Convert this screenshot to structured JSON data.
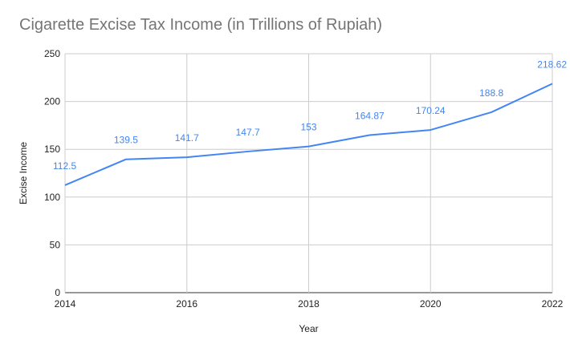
{
  "chart_data": {
    "type": "line",
    "title": "Cigarette Excise Tax Income (in Trillions of Rupiah)",
    "xlabel": "Year",
    "ylabel": "Excise Income",
    "x": [
      2014,
      2015,
      2016,
      2017,
      2018,
      2019,
      2020,
      2021,
      2022
    ],
    "series": [
      {
        "values": [
          112.5,
          139.5,
          141.7,
          147.7,
          153,
          164.87,
          170.24,
          188.8,
          218.62
        ]
      }
    ],
    "data_labels": [
      "112.5",
      "139.5",
      "141.7",
      "147.7",
      "153",
      "164.87",
      "170.24",
      "188.8",
      "218.62"
    ],
    "xlim": [
      2014,
      2022
    ],
    "ylim": [
      0,
      250
    ],
    "x_ticks": [
      "2014",
      "2016",
      "2018",
      "2020",
      "2022"
    ],
    "y_ticks": [
      "0",
      "50",
      "100",
      "150",
      "200",
      "250"
    ],
    "grid": true,
    "legend": "none",
    "line_color": "#4285f4",
    "grid_color": "#cccccc"
  }
}
